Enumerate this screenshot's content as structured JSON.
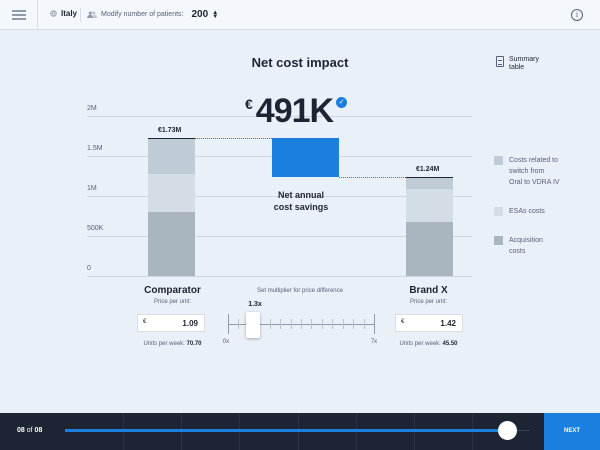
{
  "topbar": {
    "country": "Italy",
    "patients_label": "Modify number of patients:",
    "patients_value": "200"
  },
  "title": "Net cost impact",
  "summary_label_1": "Summary",
  "summary_label_2": "table",
  "big_value": {
    "currency": "€",
    "amount": "491K"
  },
  "savings_label_1": "Net annual",
  "savings_label_2": "cost savings",
  "chart_data": {
    "type": "bar",
    "yticks": [
      "2M",
      "1.5M",
      "1M",
      "500K",
      "0"
    ],
    "ylim": [
      0,
      2000000
    ],
    "categories": [
      "Comparator",
      "Net annual cost savings",
      "Brand X"
    ],
    "totals": [
      1730000,
      491000,
      1240000
    ],
    "total_labels": [
      "€1.73M",
      "",
      "€1.24M"
    ],
    "series": [
      {
        "name": "Acquisition costs",
        "values": [
          800000,
          0,
          670000
        ],
        "color": "#a9b6c0"
      },
      {
        "name": "ESAs costs",
        "values": [
          470000,
          0,
          420000
        ],
        "color": "#d3dde5"
      },
      {
        "name": "Costs related to switch from Oral to VDRA IV",
        "values": [
          460000,
          0,
          150000
        ],
        "color": "#bfcbd6"
      }
    ],
    "savings_color": "#1a7fdd"
  },
  "legend": [
    {
      "line1": "Costs related to",
      "line2": "switch from",
      "line3": "Oral to VDRA IV",
      "color": "#bfcbd6"
    },
    {
      "line1": "ESAs costs",
      "color": "#d3dde5"
    },
    {
      "line1": "Acquisition",
      "line2": "costs",
      "color": "#a9b6c0"
    }
  ],
  "comparator": {
    "name": "Comparator",
    "price_label": "Price per unit:",
    "currency": "€",
    "price": "1.09",
    "units_label": "Units per week:",
    "units_value": "70.70"
  },
  "brandx": {
    "name": "Brand X",
    "price_label": "Price per unit:",
    "currency": "€",
    "price": "1.42",
    "units_label": "Units per week:",
    "units_value": "45.50"
  },
  "multiplier": {
    "label": "Set multiplier for price difference",
    "value": "1.3x",
    "min": "0x",
    "max": "7x",
    "fraction": 0.186
  },
  "footer": {
    "page_current": "08",
    "page_of": "of",
    "page_total": "08",
    "next_label": "NEXT",
    "progress_fraction": 0.95
  }
}
